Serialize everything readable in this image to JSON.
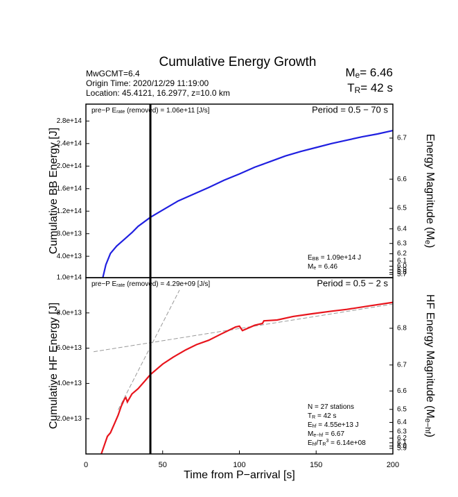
{
  "header": {
    "title": "Cumulative Energy Growth",
    "info": [
      "MwGCMT=6.4",
      "Origin Time: 2020/12/29 11:19:00",
      "Location: 45.4121, 16.2977, z=10.0 km"
    ],
    "me": {
      "runs": [
        {
          "t": "M"
        },
        {
          "t": "e",
          "s": "sub"
        },
        {
          "t": "= 6.46"
        }
      ]
    },
    "tr": {
      "runs": [
        {
          "t": "T"
        },
        {
          "t": "R",
          "s": "sub"
        },
        {
          "t": "= 42 s"
        }
      ],
      "value": 42
    }
  },
  "chart_data": [
    {
      "type": "line",
      "xlim": [
        0,
        200
      ],
      "ylim": [
        2000000000000.0,
        310000000000000.0
      ],
      "yticks": [
        {
          "value": 40000000000000.0,
          "label": "4.0e+13"
        },
        {
          "value": 80000000000000.0,
          "label": "8.0e+13"
        },
        {
          "value": 120000000000000.0,
          "label": "1.2e+14"
        },
        {
          "value": 160000000000000.0,
          "label": "1.6e+14"
        },
        {
          "value": 200000000000000.0,
          "label": "2.0e+14"
        },
        {
          "value": 240000000000000.0,
          "label": "2.4e+14"
        },
        {
          "value": 280000000000000.0,
          "label": "2.8e+14"
        }
      ],
      "y2ticks": [
        6.7,
        6.6,
        6.5,
        6.4,
        6.3,
        6.2,
        6.1,
        {
          "value": 6.0,
          "label": "6.0"
        },
        5.9,
        5.8,
        5.7
      ],
      "ylabel": "Cumulative BB Energy [J]",
      "y2label": {
        "runs": [
          {
            "t": "Energy Magnitude (M"
          },
          {
            "t": "e",
            "s": "sub"
          },
          {
            "t": ")"
          }
        ]
      },
      "rate_note": {
        "runs": [
          {
            "t": "pre−P E"
          },
          {
            "t": "rate",
            "s": "sub"
          },
          {
            "t": " (removed) = 1.06e+11 [J/s]"
          }
        ]
      },
      "period": "Period = 0.5 − 70 s",
      "energy": {
        "runs": [
          {
            "t": "E"
          },
          {
            "t": "BB",
            "s": "sub"
          },
          {
            "t": " = 1.09e+14 J"
          }
        ],
        "value": 109000000000000.0
      },
      "magnitude": {
        "runs": [
          {
            "t": "M"
          },
          {
            "t": "e",
            "s": "sub"
          },
          {
            "t": " = 6.46"
          }
        ],
        "value": 6.46
      },
      "series": [
        {
          "color": "#1f1fe0",
          "x": [
            11,
            13,
            16,
            20,
            25,
            30,
            34,
            42,
            50,
            60,
            70,
            80,
            90,
            100,
            110,
            120,
            130,
            140,
            150,
            160,
            170,
            180,
            190,
            200
          ],
          "values": [
            2000000000000.0,
            25000000000000.0,
            45000000000000.0,
            58000000000000.0,
            70000000000000.0,
            82000000000000.0,
            93000000000000.0,
            109000000000000.0,
            122000000000000.0,
            138000000000000.0,
            150000000000000.0,
            162000000000000.0,
            175000000000000.0,
            186000000000000.0,
            198000000000000.0,
            208000000000000.0,
            218000000000000.0,
            226000000000000.0,
            233000000000000.0,
            240000000000000.0,
            246000000000000.0,
            252000000000000.0,
            257000000000000.0,
            263000000000000.0
          ]
        }
      ]
    },
    {
      "type": "line",
      "xlim": [
        0,
        200
      ],
      "ylim": [
        0,
        100000000000000.0
      ],
      "xticks": [
        0,
        50,
        100,
        150,
        200
      ],
      "xlabel": "Time from P−arrival [s]",
      "yticks": [
        {
          "value": 20000000000000.0,
          "label": "2.0e+13"
        },
        {
          "value": 40000000000000.0,
          "label": "4.0e+13"
        },
        {
          "value": 60000000000000.0,
          "label": "6.0e+13"
        },
        {
          "value": 80000000000000.0,
          "label": "8.0e+13"
        },
        {
          "value": 100000000000000.0,
          "label": "1.0e+14"
        }
      ],
      "y2ticks": [
        6.8,
        6.7,
        6.6,
        6.5,
        6.4,
        6.3,
        6.2,
        6.1,
        {
          "value": 6.0,
          "label": "6.0"
        },
        5.9
      ],
      "ylabel": "Cumulative HF Energy [J]",
      "y2label": {
        "runs": [
          {
            "t": "HF Energy Magnitude (M"
          },
          {
            "t": "e−hf",
            "s": "sub"
          },
          {
            "t": ")"
          }
        ]
      },
      "rate_note": {
        "runs": [
          {
            "t": "pre−P E"
          },
          {
            "t": "rate",
            "s": "sub"
          },
          {
            "t": " (removed) = 4.29e+09 [J/s]"
          }
        ]
      },
      "period": "Period = 0.5 − 2 s",
      "stations": {
        "runs": [
          {
            "t": "N = 27 stations"
          }
        ]
      },
      "rupture_time": {
        "runs": [
          {
            "t": "T"
          },
          {
            "t": "R",
            "s": "sub"
          },
          {
            "t": " = 42  s"
          }
        ]
      },
      "energy": {
        "runs": [
          {
            "t": "E"
          },
          {
            "t": "hf",
            "s": "sub"
          },
          {
            "t": " = 4.55e+13 J"
          }
        ],
        "value": 45500000000000.0
      },
      "magnitude": {
        "runs": [
          {
            "t": "M"
          },
          {
            "t": "e−hf",
            "s": "sub"
          },
          {
            "t": " = 6.67"
          }
        ],
        "value": 6.67
      },
      "ratio": {
        "runs": [
          {
            "t": "E"
          },
          {
            "t": "hf",
            "s": "sub"
          },
          {
            "t": "/T"
          },
          {
            "t": "R",
            "s": "sub"
          },
          {
            "t": "3",
            "s": "sup"
          },
          {
            "t": " = 6.14e+08"
          }
        ]
      },
      "series": [
        {
          "color": "#e8141c",
          "x": [
            10,
            12,
            14,
            16,
            18.5,
            21,
            23,
            25,
            26,
            27,
            30,
            34,
            38,
            42,
            50,
            57,
            65,
            72,
            80,
            88,
            97.5,
            100,
            102,
            110,
            115,
            116,
            124.6,
            135,
            147,
            160,
            170,
            185,
            200
          ],
          "values": [
            0,
            5000000000000.0,
            10000000000000.0,
            12000000000000.0,
            17000000000000.0,
            22000000000000.0,
            27000000000000.0,
            31000000000000.0,
            32000000000000.0,
            29500000000000.0,
            34000000000000.0,
            37000000000000.0,
            41000000000000.0,
            45000000000000.0,
            51000000000000.0,
            55000000000000.0,
            59000000000000.0,
            62000000000000.0,
            64500000000000.0,
            68000000000000.0,
            72000000000000.0,
            72500000000000.0,
            70000000000000.0,
            73000000000000.0,
            74000000000000.0,
            75500000000000.0,
            76000000000000.0,
            78000000000000.0,
            79500000000000.0,
            81000000000000.0,
            82000000000000.0,
            84000000000000.0,
            86000000000000.0
          ]
        }
      ],
      "fit_lines": [
        {
          "color": "#999999",
          "x": [
            5,
            200
          ],
          "values": [
            58000000000000.0,
            85000000000000.0
          ]
        },
        {
          "color": "#999999",
          "x": [
            21,
            61
          ],
          "values": [
            25000000000000.0,
            93000000000000.0
          ]
        }
      ]
    }
  ]
}
